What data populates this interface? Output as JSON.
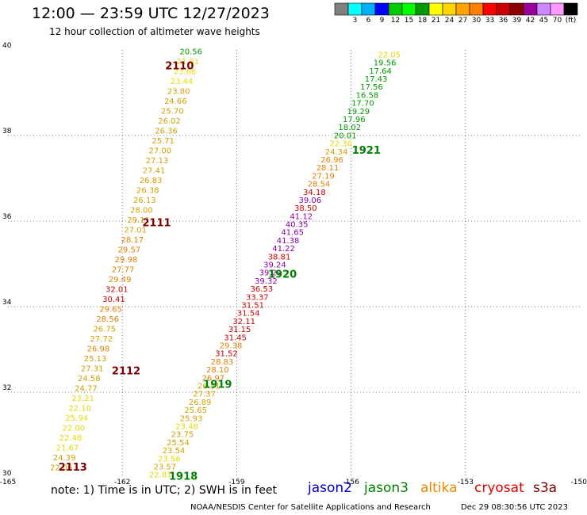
{
  "header": {
    "title": "12:00 — 23:59 UTC 12/27/2023",
    "subtitle": "12 hour collection of altimeter wave heights"
  },
  "colorbar": {
    "colors": [
      "#808080",
      "#00ffff",
      "#00b0ff",
      "#0000ff",
      "#00cc00",
      "#00ff00",
      "#009900",
      "#ffff00",
      "#ffd700",
      "#ffa500",
      "#ff7f00",
      "#ff0000",
      "#cc0000",
      "#8b0000",
      "#990099",
      "#cc88ff",
      "#ff99ff",
      "#000000"
    ],
    "labels": [
      "3",
      "6",
      "9",
      "12",
      "15",
      "18",
      "21",
      "24",
      "27",
      "30",
      "33",
      "36",
      "39",
      "42",
      "45",
      "70"
    ],
    "unit": "(ft)"
  },
  "map": {
    "lon_ticks": [
      "-165",
      "-162",
      "-159",
      "-156",
      "-153",
      "-150"
    ],
    "lat_ticks": [
      "30",
      "32",
      "34",
      "36",
      "38",
      "40"
    ],
    "lon_range": [
      -165,
      -150
    ],
    "lat_range": [
      30,
      40
    ]
  },
  "wave_colors": {
    "green": "#009900",
    "yellow": "#e8d800",
    "gold": "#d4a000",
    "orange": "#e08000",
    "red": "#cc0000",
    "purple": "#8800aa",
    "track_label": "#7a0000",
    "track_label_j3": "#008000"
  },
  "track_labels": [
    {
      "text": "2110",
      "lon": -160.5,
      "lat": 39.64,
      "color": "track_label"
    },
    {
      "text": "2111",
      "lon": -161.1,
      "lat": 35.97,
      "color": "track_label"
    },
    {
      "text": "2112",
      "lon": -161.9,
      "lat": 32.51,
      "color": "track_label"
    },
    {
      "text": "2113",
      "lon": -163.3,
      "lat": 30.26,
      "color": "track_label"
    },
    {
      "text": "1921",
      "lon": -155.6,
      "lat": 37.67,
      "color": "track_label_j3"
    },
    {
      "text": "1920",
      "lon": -157.8,
      "lat": 34.77,
      "color": "track_label_j3"
    },
    {
      "text": "1919",
      "lon": -159.5,
      "lat": 32.19,
      "color": "track_label_j3"
    },
    {
      "text": "1918",
      "lon": -160.4,
      "lat": 30.05,
      "color": "track_label_j3"
    }
  ],
  "tracks": [
    {
      "name": "west",
      "start": [
        -160.2,
        39.97
      ],
      "end": [
        -163.6,
        30.25
      ],
      "values": [
        "20.56",
        "21.61",
        "23.66",
        "23.44",
        "23.80",
        "24.66",
        "25.70",
        "26.02",
        "26.36",
        "25.71",
        "27.00",
        "27.13",
        "27.41",
        "26.83",
        "26.38",
        "26.13",
        "28.00",
        "29.11",
        "27.01",
        "28.17",
        "29.57",
        "29.98",
        "27.77",
        "29.49",
        "32.01",
        "30.41",
        "29.65",
        "28.56",
        "26.75",
        "27.72",
        "26.98",
        "25.13",
        "27.31",
        "24.58",
        "24.77",
        "23.21",
        "22.10",
        "25.94",
        "22.00",
        "22.48",
        "21.67",
        "24.39",
        "22.06"
      ],
      "colors": [
        "green",
        "yellow",
        "yellow",
        "yellow",
        "gold",
        "gold",
        "gold",
        "gold",
        "gold",
        "gold",
        "gold",
        "gold",
        "gold",
        "gold",
        "gold",
        "gold",
        "gold",
        "gold",
        "gold",
        "orange",
        "orange",
        "orange",
        "orange",
        "orange",
        "red",
        "red",
        "orange",
        "orange",
        "gold",
        "gold",
        "orange",
        "gold",
        "gold",
        "gold",
        "gold",
        "yellow",
        "yellow",
        "yellow",
        "yellow",
        "yellow",
        "yellow",
        "gold",
        "gold"
      ]
    },
    {
      "name": "east",
      "start": [
        -155.0,
        39.9
      ],
      "end": [
        -161.0,
        30.08
      ],
      "values": [
        "22.05",
        "19.56",
        "17.64",
        "17.43",
        "17.56",
        "16.58",
        "17.70",
        "19.29",
        "17.96",
        "18.02",
        "20.01",
        "22.30",
        "24.34",
        "26.96",
        "28.11",
        "27.19",
        "28.54",
        "34.18",
        "39.06",
        "38.50",
        "41.12",
        "40.35",
        "41.65",
        "41.38",
        "41.22",
        "38.81",
        "39.24",
        "39.29",
        "39.32",
        "36.53",
        "33.37",
        "31.51",
        "31.54",
        "32.11",
        "31.15",
        "31.45",
        "29.38",
        "31.52",
        "28.83",
        "28.10",
        "26.97",
        "26.51",
        "27.37",
        "26.89",
        "25.65",
        "25.93",
        "23.48",
        "23.75",
        "25.54",
        "23.54",
        "23.56",
        "23.57",
        "22.81"
      ],
      "colors": [
        "yellow",
        "green",
        "green",
        "green",
        "green",
        "green",
        "green",
        "green",
        "green",
        "green",
        "green",
        "yellow",
        "gold",
        "orange",
        "orange",
        "orange",
        "orange",
        "red",
        "purple",
        "red",
        "purple",
        "purple",
        "purple",
        "purple",
        "purple",
        "red",
        "purple",
        "purple",
        "purple",
        "red",
        "red",
        "red",
        "red",
        "red",
        "red",
        "red",
        "orange",
        "red",
        "orange",
        "orange",
        "orange",
        "gold",
        "gold",
        "gold",
        "gold",
        "gold",
        "yellow",
        "gold",
        "gold",
        "gold",
        "yellow",
        "gold",
        "yellow"
      ]
    }
  ],
  "footer": {
    "note": "note: 1) Time is in UTC; 2) SWH is in feet",
    "satellites": [
      {
        "name": "jason2",
        "color": "#0000cc",
        "left": 388
      },
      {
        "name": "jason3",
        "color": "#008000",
        "left": 459
      },
      {
        "name": "altika",
        "color": "#ee8800",
        "left": 530
      },
      {
        "name": "cryosat",
        "color": "#dd0000",
        "left": 598
      },
      {
        "name": "s3a",
        "color": "#7a0000",
        "left": 672
      }
    ],
    "credit": "NOAA/NESDIS Center for Satellite Applications and Research",
    "generated": "Dec 29 08:30:56 UTC 2023"
  }
}
